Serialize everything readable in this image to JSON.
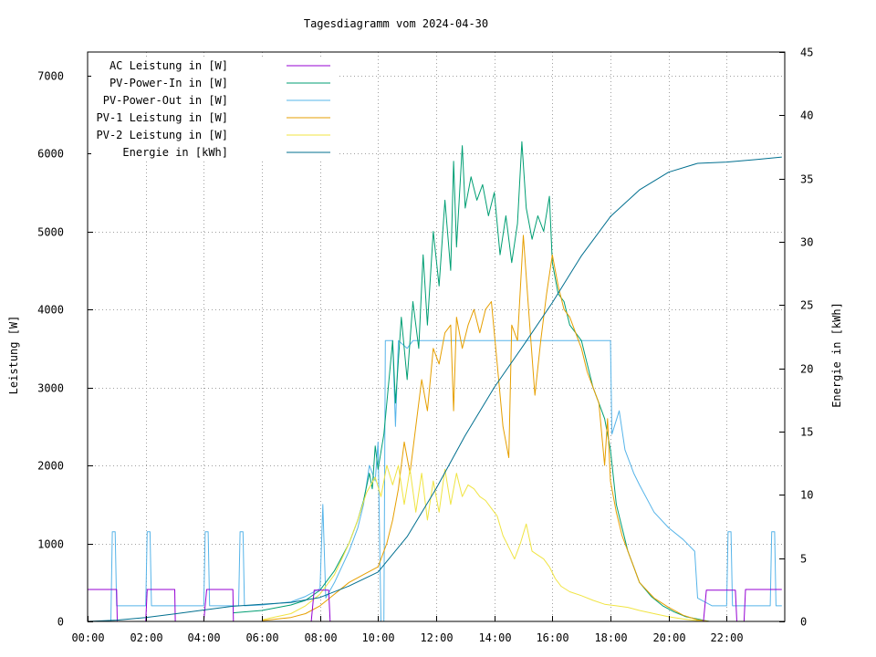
{
  "chart_data": {
    "type": "line",
    "title": "Tagesdiagramm vom 2024-04-30",
    "ylabel": "Leistung [W]",
    "y2label": "Energie in [kWh]",
    "xlim": [
      0,
      24
    ],
    "ylim": [
      0,
      7300
    ],
    "y2lim": [
      0,
      45
    ],
    "x_ticks": [
      0,
      2,
      4,
      6,
      8,
      10,
      12,
      14,
      16,
      18,
      20,
      22
    ],
    "x_tick_labels": [
      "00:00",
      "02:00",
      "04:00",
      "06:00",
      "08:00",
      "10:00",
      "12:00",
      "14:00",
      "16:00",
      "18:00",
      "20:00",
      "22:00"
    ],
    "y_ticks": [
      0,
      1000,
      2000,
      3000,
      4000,
      5000,
      6000,
      7000
    ],
    "y_tick_labels": [
      "0",
      "1000",
      "2000",
      "3000",
      "4000",
      "5000",
      "6000",
      "7000"
    ],
    "y2_ticks": [
      0,
      5,
      10,
      15,
      20,
      25,
      30,
      35,
      40,
      45
    ],
    "y2_tick_labels": [
      "0",
      "5",
      "10",
      "15",
      "20",
      "25",
      "30",
      "35",
      "40",
      "45"
    ],
    "grid": true,
    "legend": "top-left",
    "series": [
      {
        "name": "AC Leistung in [W]",
        "color": "#9400d3",
        "axis": "left",
        "points": [
          [
            0.0,
            410
          ],
          [
            1.0,
            410
          ],
          [
            1.02,
            0
          ],
          [
            2.0,
            0
          ],
          [
            2.05,
            410
          ],
          [
            3.0,
            410
          ],
          [
            3.02,
            0
          ],
          [
            4.0,
            0
          ],
          [
            4.1,
            410
          ],
          [
            5.0,
            410
          ],
          [
            5.02,
            0
          ],
          [
            7.7,
            0
          ],
          [
            7.8,
            400
          ],
          [
            8.3,
            400
          ],
          [
            8.35,
            0
          ],
          [
            21.2,
            0
          ],
          [
            21.3,
            400
          ],
          [
            22.3,
            400
          ],
          [
            22.35,
            0
          ],
          [
            22.6,
            0
          ],
          [
            22.65,
            410
          ],
          [
            23.9,
            410
          ]
        ]
      },
      {
        "name": "PV-Power-In in [W]",
        "color": "#009e73",
        "axis": "left",
        "points": [
          [
            5.0,
            110
          ],
          [
            6.0,
            140
          ],
          [
            7.0,
            210
          ],
          [
            7.5,
            270
          ],
          [
            8.0,
            400
          ],
          [
            8.5,
            650
          ],
          [
            9.0,
            1000
          ],
          [
            9.3,
            1300
          ],
          [
            9.5,
            1550
          ],
          [
            9.7,
            1900
          ],
          [
            9.8,
            1700
          ],
          [
            9.9,
            2250
          ],
          [
            10.0,
            1950
          ],
          [
            10.2,
            2400
          ],
          [
            10.35,
            3000
          ],
          [
            10.5,
            3600
          ],
          [
            10.6,
            2800
          ],
          [
            10.8,
            3900
          ],
          [
            11.0,
            3100
          ],
          [
            11.2,
            4100
          ],
          [
            11.4,
            3500
          ],
          [
            11.55,
            4700
          ],
          [
            11.7,
            3800
          ],
          [
            11.9,
            5000
          ],
          [
            12.1,
            4300
          ],
          [
            12.3,
            5400
          ],
          [
            12.5,
            4500
          ],
          [
            12.6,
            5900
          ],
          [
            12.7,
            4800
          ],
          [
            12.9,
            6100
          ],
          [
            13.0,
            5300
          ],
          [
            13.2,
            5700
          ],
          [
            13.4,
            5400
          ],
          [
            13.6,
            5600
          ],
          [
            13.8,
            5200
          ],
          [
            14.0,
            5500
          ],
          [
            14.2,
            4700
          ],
          [
            14.4,
            5200
          ],
          [
            14.6,
            4600
          ],
          [
            14.8,
            5100
          ],
          [
            14.95,
            6150
          ],
          [
            15.1,
            5300
          ],
          [
            15.3,
            4900
          ],
          [
            15.5,
            5200
          ],
          [
            15.7,
            5000
          ],
          [
            15.9,
            5450
          ],
          [
            16.0,
            4600
          ],
          [
            16.2,
            4200
          ],
          [
            16.4,
            4100
          ],
          [
            16.6,
            3800
          ],
          [
            16.8,
            3700
          ],
          [
            17.0,
            3600
          ],
          [
            17.2,
            3300
          ],
          [
            17.4,
            3000
          ],
          [
            17.6,
            2800
          ],
          [
            17.8,
            2600
          ],
          [
            18.0,
            2200
          ],
          [
            18.2,
            1500
          ],
          [
            18.4,
            1200
          ],
          [
            18.6,
            900
          ],
          [
            18.8,
            700
          ],
          [
            19.0,
            500
          ],
          [
            19.4,
            320
          ],
          [
            19.8,
            200
          ],
          [
            20.2,
            120
          ],
          [
            20.6,
            60
          ],
          [
            21.0,
            30
          ],
          [
            21.4,
            0
          ]
        ]
      },
      {
        "name": "PV-Power-Out in [W]",
        "color": "#56b4e9",
        "axis": "left",
        "points": [
          [
            0.0,
            0
          ],
          [
            0.8,
            0
          ],
          [
            0.85,
            1150
          ],
          [
            0.95,
            1150
          ],
          [
            1.0,
            200
          ],
          [
            2.0,
            200
          ],
          [
            2.05,
            1150
          ],
          [
            2.15,
            1150
          ],
          [
            2.2,
            200
          ],
          [
            4.0,
            200
          ],
          [
            4.05,
            1150
          ],
          [
            4.15,
            1150
          ],
          [
            4.2,
            200
          ],
          [
            5.2,
            200
          ],
          [
            5.25,
            1150
          ],
          [
            5.35,
            1150
          ],
          [
            5.4,
            200
          ],
          [
            6.0,
            210
          ],
          [
            7.0,
            250
          ],
          [
            7.5,
            320
          ],
          [
            8.0,
            420
          ],
          [
            8.1,
            1500
          ],
          [
            8.2,
            300
          ],
          [
            8.5,
            500
          ],
          [
            9.0,
            900
          ],
          [
            9.3,
            1200
          ],
          [
            9.5,
            1500
          ],
          [
            9.7,
            2000
          ],
          [
            9.9,
            1800
          ],
          [
            10.0,
            2300
          ],
          [
            10.1,
            0
          ],
          [
            10.2,
            0
          ],
          [
            10.25,
            3600
          ],
          [
            10.5,
            3600
          ],
          [
            10.6,
            2500
          ],
          [
            10.7,
            3600
          ],
          [
            11.0,
            3500
          ],
          [
            11.2,
            3600
          ],
          [
            14.0,
            3600
          ],
          [
            16.0,
            3600
          ],
          [
            17.5,
            3600
          ],
          [
            18.0,
            3600
          ],
          [
            18.05,
            2400
          ],
          [
            18.3,
            2700
          ],
          [
            18.5,
            2200
          ],
          [
            18.8,
            1900
          ],
          [
            19.0,
            1750
          ],
          [
            19.5,
            1400
          ],
          [
            20.0,
            1200
          ],
          [
            20.5,
            1050
          ],
          [
            20.9,
            900
          ],
          [
            21.0,
            300
          ],
          [
            21.5,
            200
          ],
          [
            22.0,
            200
          ],
          [
            22.05,
            1150
          ],
          [
            22.15,
            1150
          ],
          [
            22.2,
            200
          ],
          [
            23.5,
            200
          ],
          [
            23.55,
            1150
          ],
          [
            23.65,
            1150
          ],
          [
            23.7,
            200
          ],
          [
            23.9,
            200
          ]
        ]
      },
      {
        "name": "PV-1 Leistung in [W]",
        "color": "#e69f00",
        "axis": "left",
        "points": [
          [
            6.0,
            10
          ],
          [
            7.0,
            50
          ],
          [
            7.5,
            100
          ],
          [
            8.0,
            200
          ],
          [
            8.5,
            350
          ],
          [
            9.0,
            500
          ],
          [
            9.5,
            600
          ],
          [
            10.0,
            700
          ],
          [
            10.3,
            1000
          ],
          [
            10.5,
            1300
          ],
          [
            10.7,
            1700
          ],
          [
            10.9,
            2300
          ],
          [
            11.1,
            1900
          ],
          [
            11.3,
            2500
          ],
          [
            11.5,
            3100
          ],
          [
            11.7,
            2700
          ],
          [
            11.9,
            3500
          ],
          [
            12.1,
            3300
          ],
          [
            12.3,
            3700
          ],
          [
            12.5,
            3800
          ],
          [
            12.6,
            2700
          ],
          [
            12.7,
            3900
          ],
          [
            12.9,
            3500
          ],
          [
            13.1,
            3800
          ],
          [
            13.3,
            4000
          ],
          [
            13.5,
            3700
          ],
          [
            13.7,
            4000
          ],
          [
            13.9,
            4100
          ],
          [
            14.1,
            3300
          ],
          [
            14.3,
            2500
          ],
          [
            14.5,
            2100
          ],
          [
            14.6,
            3800
          ],
          [
            14.8,
            3600
          ],
          [
            15.0,
            4950
          ],
          [
            15.2,
            3900
          ],
          [
            15.4,
            2900
          ],
          [
            15.6,
            3600
          ],
          [
            15.8,
            4200
          ],
          [
            16.0,
            4700
          ],
          [
            16.2,
            4300
          ],
          [
            16.4,
            4000
          ],
          [
            16.6,
            3900
          ],
          [
            16.8,
            3700
          ],
          [
            17.0,
            3500
          ],
          [
            17.2,
            3200
          ],
          [
            17.4,
            3000
          ],
          [
            17.6,
            2800
          ],
          [
            17.8,
            2000
          ],
          [
            17.9,
            2600
          ],
          [
            18.0,
            1800
          ],
          [
            18.2,
            1400
          ],
          [
            18.4,
            1100
          ],
          [
            18.6,
            900
          ],
          [
            18.8,
            700
          ],
          [
            19.0,
            500
          ],
          [
            19.5,
            300
          ],
          [
            20.0,
            180
          ],
          [
            20.5,
            80
          ],
          [
            21.0,
            20
          ],
          [
            21.4,
            0
          ]
        ]
      },
      {
        "name": "PV-2 Leistung in [W]",
        "color": "#f0e442",
        "axis": "left",
        "points": [
          [
            6.0,
            20
          ],
          [
            7.0,
            100
          ],
          [
            7.5,
            200
          ],
          [
            8.0,
            350
          ],
          [
            8.5,
            600
          ],
          [
            9.0,
            1000
          ],
          [
            9.3,
            1300
          ],
          [
            9.6,
            1650
          ],
          [
            9.9,
            1850
          ],
          [
            10.1,
            1600
          ],
          [
            10.3,
            2000
          ],
          [
            10.5,
            1750
          ],
          [
            10.7,
            2000
          ],
          [
            10.9,
            1500
          ],
          [
            11.1,
            1950
          ],
          [
            11.3,
            1400
          ],
          [
            11.5,
            1900
          ],
          [
            11.7,
            1300
          ],
          [
            11.9,
            1800
          ],
          [
            12.1,
            1400
          ],
          [
            12.3,
            1950
          ],
          [
            12.5,
            1500
          ],
          [
            12.7,
            1900
          ],
          [
            12.9,
            1600
          ],
          [
            13.1,
            1750
          ],
          [
            13.3,
            1700
          ],
          [
            13.5,
            1600
          ],
          [
            13.7,
            1550
          ],
          [
            13.9,
            1450
          ],
          [
            14.1,
            1350
          ],
          [
            14.3,
            1100
          ],
          [
            14.5,
            950
          ],
          [
            14.7,
            800
          ],
          [
            14.9,
            1000
          ],
          [
            15.1,
            1250
          ],
          [
            15.3,
            900
          ],
          [
            15.5,
            850
          ],
          [
            15.7,
            800
          ],
          [
            15.9,
            700
          ],
          [
            16.1,
            550
          ],
          [
            16.3,
            450
          ],
          [
            16.6,
            380
          ],
          [
            17.0,
            330
          ],
          [
            17.4,
            270
          ],
          [
            17.8,
            220
          ],
          [
            18.2,
            200
          ],
          [
            18.6,
            180
          ],
          [
            19.0,
            140
          ],
          [
            19.5,
            100
          ],
          [
            20.0,
            60
          ],
          [
            20.5,
            30
          ],
          [
            21.0,
            10
          ],
          [
            21.3,
            0
          ]
        ]
      },
      {
        "name": "Energie in [kWh]",
        "color": "#006f8f",
        "axis": "right",
        "points": [
          [
            0.0,
            0.0
          ],
          [
            1.0,
            0.1
          ],
          [
            2.0,
            0.3
          ],
          [
            3.0,
            0.6
          ],
          [
            4.0,
            0.9
          ],
          [
            5.0,
            1.2
          ],
          [
            6.0,
            1.35
          ],
          [
            7.0,
            1.5
          ],
          [
            8.0,
            1.9
          ],
          [
            9.0,
            2.8
          ],
          [
            10.0,
            3.9
          ],
          [
            11.0,
            6.7
          ],
          [
            12.0,
            10.5
          ],
          [
            13.0,
            14.7
          ],
          [
            14.0,
            18.5
          ],
          [
            15.0,
            21.8
          ],
          [
            16.0,
            25.2
          ],
          [
            17.0,
            28.9
          ],
          [
            18.0,
            32.0
          ],
          [
            19.0,
            34.1
          ],
          [
            20.0,
            35.5
          ],
          [
            21.0,
            36.2
          ],
          [
            22.0,
            36.3
          ],
          [
            23.0,
            36.5
          ],
          [
            23.9,
            36.7
          ]
        ]
      }
    ]
  }
}
